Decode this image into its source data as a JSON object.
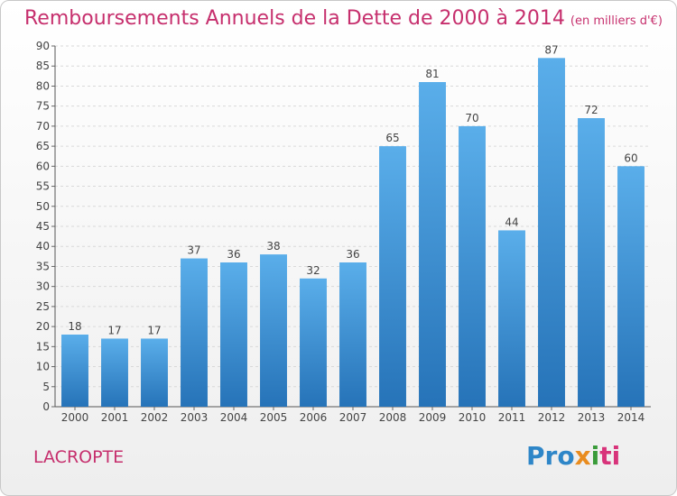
{
  "header": {
    "title": "Remboursements Annuels de la Dette de 2000 à 2014",
    "unit": "(en milliers d'€)"
  },
  "footer": {
    "commune": "LACROPTE",
    "logo": [
      "Pro",
      "x",
      "i",
      "ti"
    ]
  },
  "colors": {
    "accent": "#c62f6d",
    "bar_top": "#5aaeea",
    "bar_bottom": "#2673b8"
  },
  "chart_data": {
    "type": "bar",
    "title": "Remboursements Annuels de la Dette de 2000 à 2014",
    "categories": [
      "2000",
      "2001",
      "2002",
      "2003",
      "2004",
      "2005",
      "2006",
      "2007",
      "2008",
      "2009",
      "2010",
      "2011",
      "2012",
      "2013",
      "2014"
    ],
    "values": [
      18,
      17,
      17,
      37,
      36,
      38,
      32,
      36,
      65,
      81,
      70,
      44,
      87,
      72,
      60
    ],
    "ylim": [
      0,
      90
    ],
    "yticks": [
      0,
      5,
      10,
      15,
      20,
      25,
      30,
      35,
      40,
      45,
      50,
      55,
      60,
      65,
      70,
      75,
      80,
      85,
      90
    ],
    "grid": true,
    "xlabel": "",
    "ylabel": ""
  }
}
